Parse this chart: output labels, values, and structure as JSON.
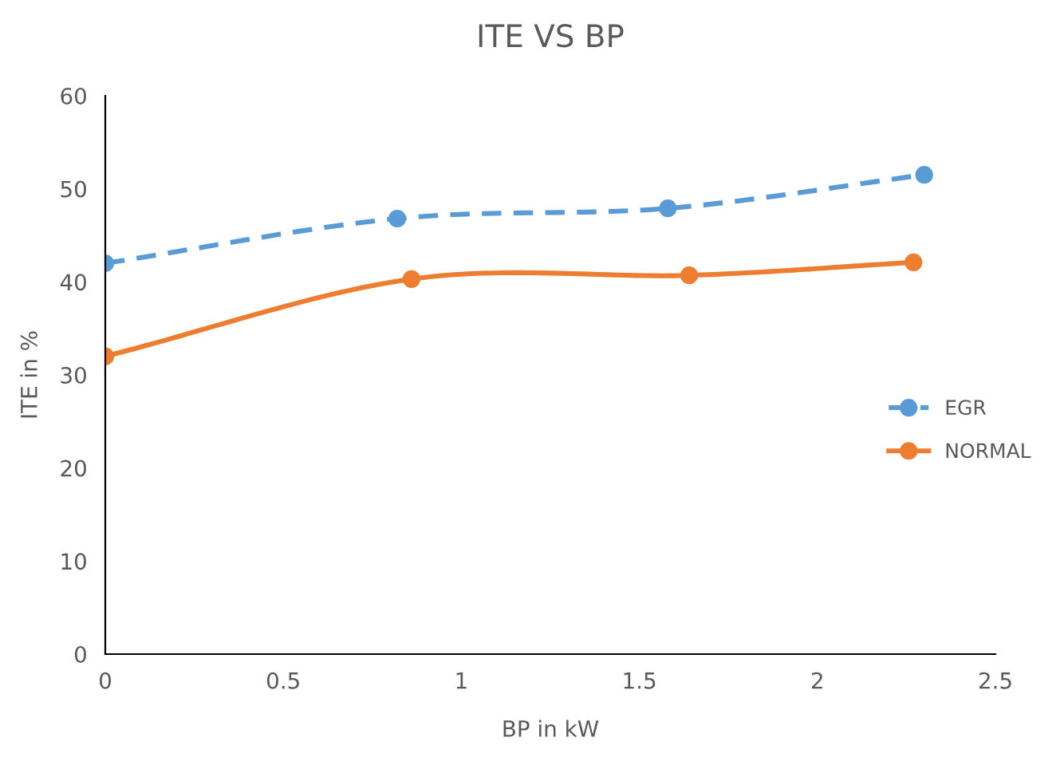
{
  "chart_data": {
    "type": "line",
    "title": "ITE VS BP",
    "xlabel": "BP in kW",
    "ylabel": "ITE in %",
    "series": [
      {
        "name": "EGR",
        "color": "#5b9bd5",
        "x": [
          0,
          0.82,
          1.58,
          2.3
        ],
        "values": [
          42.0,
          46.8,
          47.9,
          51.5
        ],
        "line_style": "dashed"
      },
      {
        "name": "NORMAL",
        "color": "#ed7d31",
        "x": [
          0,
          0.86,
          1.64,
          2.27
        ],
        "values": [
          32.0,
          40.3,
          40.7,
          42.1
        ],
        "line_style": "solid"
      }
    ],
    "xlim": [
      0,
      2.5
    ],
    "xticks": [
      0,
      0.5,
      1,
      1.5,
      2,
      2.5
    ],
    "ylim": [
      0,
      60
    ],
    "yticks": [
      0,
      10,
      20,
      30,
      40,
      50,
      60
    ],
    "marker": "circle",
    "legend": "right",
    "grid": false
  }
}
